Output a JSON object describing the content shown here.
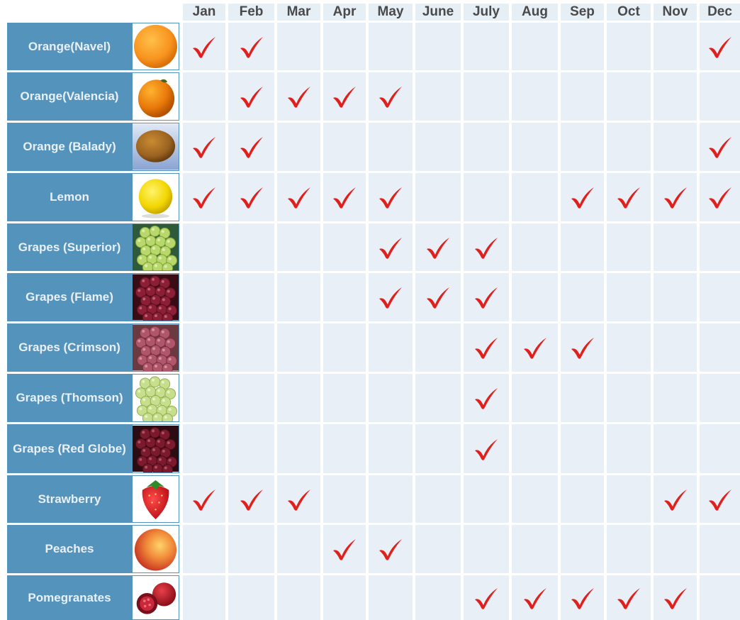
{
  "months": [
    "Jan",
    "Feb",
    "Mar",
    "Apr",
    "May",
    "June",
    "July",
    "Aug",
    "Sep",
    "Oct",
    "Nov",
    "Dec"
  ],
  "colors": {
    "name_bg": "#5393bc",
    "header_bg": "#e6eef6",
    "cell_bg": "#e9eff6",
    "check": "#e0201c"
  },
  "rows": [
    {
      "name": "Orange(Navel)",
      "icon": "navel-orange-photo",
      "months": [
        1,
        1,
        0,
        0,
        0,
        0,
        0,
        0,
        0,
        0,
        0,
        1
      ]
    },
    {
      "name": "Orange(Valencia)",
      "icon": "valencia-orange-photo",
      "months": [
        0,
        1,
        1,
        1,
        1,
        0,
        0,
        0,
        0,
        0,
        0,
        0
      ]
    },
    {
      "name": "Orange (Balady)",
      "icon": "balady-orange-photo",
      "months": [
        1,
        1,
        0,
        0,
        0,
        0,
        0,
        0,
        0,
        0,
        0,
        1
      ]
    },
    {
      "name": "Lemon",
      "icon": "lemon-photo",
      "months": [
        1,
        1,
        1,
        1,
        1,
        0,
        0,
        0,
        1,
        1,
        1,
        1
      ]
    },
    {
      "name": "Grapes (Superior)",
      "icon": "green-grapes-photo",
      "months": [
        0,
        0,
        0,
        0,
        1,
        1,
        1,
        0,
        0,
        0,
        0,
        0
      ]
    },
    {
      "name": "Grapes (Flame)",
      "icon": "red-grapes-photo",
      "months": [
        0,
        0,
        0,
        0,
        1,
        1,
        1,
        0,
        0,
        0,
        0,
        0
      ]
    },
    {
      "name": "Grapes (Crimson)",
      "icon": "crimson-grapes-photo",
      "months": [
        0,
        0,
        0,
        0,
        0,
        0,
        1,
        1,
        1,
        0,
        0,
        0
      ]
    },
    {
      "name": "Grapes (Thomson)",
      "icon": "thomson-grapes-photo",
      "months": [
        0,
        0,
        0,
        0,
        0,
        0,
        1,
        0,
        0,
        0,
        0,
        0
      ]
    },
    {
      "name": "Grapes (Red Globe)",
      "icon": "red-globe-grapes-photo",
      "months": [
        0,
        0,
        0,
        0,
        0,
        0,
        1,
        0,
        0,
        0,
        0,
        0
      ]
    },
    {
      "name": "Strawberry",
      "icon": "strawberry-photo",
      "months": [
        1,
        1,
        1,
        0,
        0,
        0,
        0,
        0,
        0,
        0,
        1,
        1
      ]
    },
    {
      "name": "Peaches",
      "icon": "peach-photo",
      "months": [
        0,
        0,
        0,
        1,
        1,
        0,
        0,
        0,
        0,
        0,
        0,
        0
      ]
    },
    {
      "name": "Pomegranates",
      "icon": "pomegranate-photo",
      "months": [
        0,
        0,
        0,
        0,
        0,
        0,
        1,
        1,
        1,
        1,
        1,
        0
      ]
    }
  ]
}
